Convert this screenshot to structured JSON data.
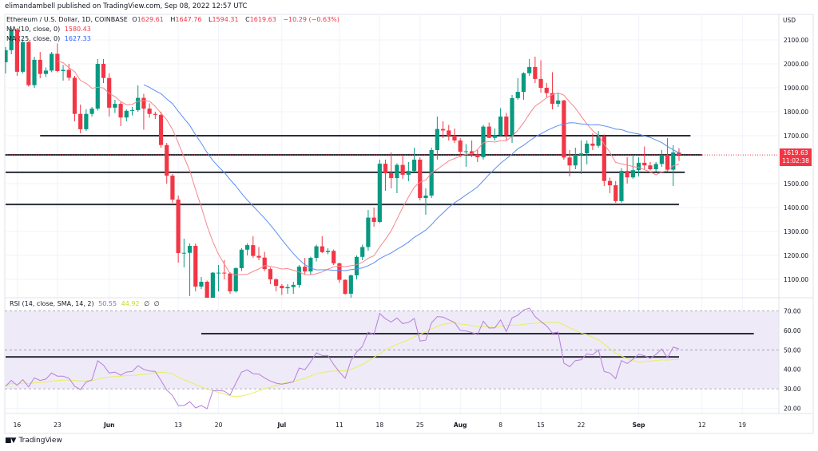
{
  "header": {
    "published": "elimandambell published on TradingView.com, Sep 08, 2022 12:57 UTC"
  },
  "legend": {
    "symbol": "Ethereum / U.S. Dollar, 1D, COINBASE",
    "o_label": "O",
    "o_value": "1629.61",
    "h_label": "H",
    "h_value": "1647.76",
    "l_label": "L",
    "l_value": "1594.31",
    "c_label": "C",
    "c_value": "1619.63",
    "change": "−10.29 (−0.63%)",
    "ma1_label": "MA (10, close, 0)",
    "ma1_value": "1580.43",
    "ma2_label": "MA (25, close, 0)",
    "ma2_value": "1627.33",
    "rsi_label": "RSI (14, close, SMA, 14, 2)",
    "rsi_value": "50.55",
    "rsi_sma_value": "44.92",
    "rsi_extra1": "∅",
    "rsi_extra2": "∅"
  },
  "price_axis": {
    "currency": "USD",
    "last_price": "1619.63",
    "countdown": "11:02:38"
  },
  "footer": {
    "brand": "TradingView",
    "logo": "17"
  },
  "colors": {
    "up": "#089981",
    "down": "#f23645",
    "ma10": "#f7868b",
    "ma25": "#5b8ef6",
    "rsi": "#b67fdc",
    "rsi_sma": "#e6f05a",
    "rsi_band": "#efeaf8",
    "drawing": "#2a2e39",
    "grid": "#f0f3fa"
  },
  "chart_data": [
    {
      "type": "candlestick",
      "title": "Ethereum / U.S. Dollar, 1D, COINBASE",
      "ylabel": "USD",
      "ylim": [
        1040,
        2160
      ],
      "grid": true,
      "y_ticks": [
        "2100.00",
        "2000.00",
        "1900.00",
        "1800.00",
        "1700.00",
        "1500.00",
        "1400.00",
        "1300.00",
        "1200.00",
        "1100.00"
      ],
      "x_ticks": [
        {
          "label": "16",
          "date": "2022-05-16"
        },
        {
          "label": "23",
          "date": "2022-05-23"
        },
        {
          "label": "Jun",
          "date": "2022-06-01"
        },
        {
          "label": "13",
          "date": "2022-06-13"
        },
        {
          "label": "20",
          "date": "2022-06-20"
        },
        {
          "label": "Jul",
          "date": "2022-07-01"
        },
        {
          "label": "11",
          "date": "2022-07-11"
        },
        {
          "label": "18",
          "date": "2022-07-18"
        },
        {
          "label": "25",
          "date": "2022-07-25"
        },
        {
          "label": "Aug",
          "date": "2022-08-01"
        },
        {
          "label": "8",
          "date": "2022-08-08"
        },
        {
          "label": "15",
          "date": "2022-08-15"
        },
        {
          "label": "22",
          "date": "2022-08-22"
        },
        {
          "label": "Sep",
          "date": "2022-09-01"
        },
        {
          "label": "12",
          "date": "2022-09-12"
        },
        {
          "label": "19",
          "date": "2022-09-19"
        }
      ],
      "candles_columns": [
        "date",
        "open",
        "high",
        "low",
        "close"
      ],
      "candles": [
        [
          "2022-05-14",
          2007,
          2070,
          1960,
          2057
        ],
        [
          "2022-05-15",
          2057,
          2150,
          2040,
          2143
        ],
        [
          "2022-05-16",
          2143,
          2150,
          1950,
          1967
        ],
        [
          "2022-05-17",
          1967,
          2100,
          1960,
          2091
        ],
        [
          "2022-05-18",
          2091,
          2095,
          1905,
          1911
        ],
        [
          "2022-05-19",
          1911,
          2030,
          1900,
          2017
        ],
        [
          "2022-05-20",
          2017,
          2050,
          1940,
          1958
        ],
        [
          "2022-05-21",
          1958,
          1985,
          1945,
          1972
        ],
        [
          "2022-05-22",
          1972,
          2050,
          1965,
          2042
        ],
        [
          "2022-05-23",
          2042,
          2085,
          1965,
          1970
        ],
        [
          "2022-05-24",
          1970,
          1995,
          1930,
          1975
        ],
        [
          "2022-05-25",
          1975,
          2000,
          1930,
          1942
        ],
        [
          "2022-05-26",
          1942,
          1950,
          1760,
          1791
        ],
        [
          "2022-05-27",
          1791,
          1830,
          1710,
          1727
        ],
        [
          "2022-05-28",
          1727,
          1810,
          1720,
          1791
        ],
        [
          "2022-05-29",
          1791,
          1820,
          1780,
          1813
        ],
        [
          "2022-05-30",
          1813,
          2020,
          1805,
          2000
        ],
        [
          "2022-05-31",
          2000,
          2020,
          1920,
          1941
        ],
        [
          "2022-06-01",
          1941,
          1960,
          1780,
          1817
        ],
        [
          "2022-06-02",
          1817,
          1850,
          1795,
          1833
        ],
        [
          "2022-06-03",
          1833,
          1840,
          1740,
          1776
        ],
        [
          "2022-06-04",
          1776,
          1810,
          1760,
          1804
        ],
        [
          "2022-06-05",
          1804,
          1820,
          1785,
          1807
        ],
        [
          "2022-06-06",
          1807,
          1910,
          1800,
          1858
        ],
        [
          "2022-06-07",
          1858,
          1875,
          1725,
          1813
        ],
        [
          "2022-06-08",
          1813,
          1835,
          1775,
          1791
        ],
        [
          "2022-06-09",
          1791,
          1800,
          1770,
          1787
        ],
        [
          "2022-06-10",
          1787,
          1800,
          1650,
          1661
        ],
        [
          "2022-06-11",
          1661,
          1670,
          1500,
          1533
        ],
        [
          "2022-06-12",
          1533,
          1540,
          1420,
          1433
        ],
        [
          "2022-06-13",
          1433,
          1450,
          1170,
          1210
        ],
        [
          "2022-06-14",
          1210,
          1270,
          1150,
          1211
        ],
        [
          "2022-06-15",
          1211,
          1250,
          1030,
          1240
        ],
        [
          "2022-06-16",
          1240,
          1250,
          1050,
          1070
        ],
        [
          "2022-06-17",
          1070,
          1110,
          1060,
          1090
        ],
        [
          "2022-06-18",
          1090,
          1095,
          880,
          1000
        ],
        [
          "2022-06-19",
          1000,
          1130,
          980,
          1128
        ],
        [
          "2022-06-20",
          1128,
          1160,
          1050,
          1128
        ],
        [
          "2022-06-21",
          1128,
          1180,
          1100,
          1125
        ],
        [
          "2022-06-22",
          1125,
          1130,
          1040,
          1050
        ],
        [
          "2022-06-23",
          1050,
          1150,
          1045,
          1147
        ],
        [
          "2022-06-24",
          1147,
          1230,
          1135,
          1224
        ],
        [
          "2022-06-25",
          1224,
          1250,
          1200,
          1243
        ],
        [
          "2022-06-26",
          1243,
          1280,
          1190,
          1198
        ],
        [
          "2022-06-27",
          1198,
          1235,
          1180,
          1191
        ],
        [
          "2022-06-28",
          1191,
          1215,
          1135,
          1143
        ],
        [
          "2022-06-29",
          1143,
          1150,
          1080,
          1100
        ],
        [
          "2022-06-30",
          1100,
          1105,
          1050,
          1073
        ],
        [
          "2022-07-01",
          1073,
          1080,
          1035,
          1063
        ],
        [
          "2022-07-02",
          1063,
          1080,
          1040,
          1068
        ],
        [
          "2022-07-03",
          1068,
          1090,
          1040,
          1077
        ],
        [
          "2022-07-04",
          1077,
          1160,
          1065,
          1153
        ],
        [
          "2022-07-05",
          1153,
          1190,
          1120,
          1133
        ],
        [
          "2022-07-06",
          1133,
          1195,
          1120,
          1190
        ],
        [
          "2022-07-07",
          1190,
          1245,
          1175,
          1238
        ],
        [
          "2022-07-08",
          1238,
          1280,
          1210,
          1214
        ],
        [
          "2022-07-09",
          1214,
          1230,
          1205,
          1219
        ],
        [
          "2022-07-10",
          1219,
          1225,
          1160,
          1167
        ],
        [
          "2022-07-11",
          1167,
          1170,
          1085,
          1098
        ],
        [
          "2022-07-12",
          1098,
          1100,
          1035,
          1040
        ],
        [
          "2022-07-13",
          1040,
          1120,
          1020,
          1117
        ],
        [
          "2022-07-14",
          1117,
          1200,
          1100,
          1194
        ],
        [
          "2022-07-15",
          1194,
          1245,
          1180,
          1235
        ],
        [
          "2022-07-16",
          1235,
          1390,
          1220,
          1358
        ],
        [
          "2022-07-17",
          1358,
          1400,
          1320,
          1340
        ],
        [
          "2022-07-18",
          1340,
          1600,
          1335,
          1583
        ],
        [
          "2022-07-19",
          1583,
          1600,
          1470,
          1543
        ],
        [
          "2022-07-20",
          1543,
          1630,
          1480,
          1523
        ],
        [
          "2022-07-21",
          1523,
          1585,
          1460,
          1578
        ],
        [
          "2022-07-22",
          1578,
          1620,
          1520,
          1537
        ],
        [
          "2022-07-23",
          1537,
          1590,
          1510,
          1553
        ],
        [
          "2022-07-24",
          1553,
          1650,
          1550,
          1600
        ],
        [
          "2022-07-25",
          1600,
          1610,
          1430,
          1440
        ],
        [
          "2022-07-26",
          1440,
          1480,
          1370,
          1450
        ],
        [
          "2022-07-27",
          1450,
          1650,
          1440,
          1640
        ],
        [
          "2022-07-28",
          1640,
          1780,
          1600,
          1728
        ],
        [
          "2022-07-29",
          1728,
          1760,
          1690,
          1722
        ],
        [
          "2022-07-30",
          1722,
          1745,
          1680,
          1700
        ],
        [
          "2022-07-31",
          1700,
          1730,
          1670,
          1680
        ],
        [
          "2022-08-01",
          1680,
          1690,
          1610,
          1633
        ],
        [
          "2022-08-02",
          1633,
          1665,
          1570,
          1635
        ],
        [
          "2022-08-03",
          1635,
          1680,
          1610,
          1622
        ],
        [
          "2022-08-04",
          1622,
          1640,
          1590,
          1610
        ],
        [
          "2022-08-05",
          1610,
          1745,
          1600,
          1738
        ],
        [
          "2022-08-06",
          1738,
          1755,
          1690,
          1691
        ],
        [
          "2022-08-07",
          1691,
          1730,
          1680,
          1702
        ],
        [
          "2022-08-08",
          1702,
          1815,
          1700,
          1780
        ],
        [
          "2022-08-09",
          1780,
          1795,
          1680,
          1702
        ],
        [
          "2022-08-10",
          1702,
          1870,
          1670,
          1857
        ],
        [
          "2022-08-11",
          1857,
          1940,
          1850,
          1883
        ],
        [
          "2022-08-12",
          1883,
          1965,
          1850,
          1961
        ],
        [
          "2022-08-13",
          1961,
          2020,
          1950,
          1987
        ],
        [
          "2022-08-14",
          1987,
          2030,
          1920,
          1937
        ],
        [
          "2022-08-15",
          1937,
          2015,
          1880,
          1900
        ],
        [
          "2022-08-16",
          1900,
          1920,
          1860,
          1878
        ],
        [
          "2022-08-17",
          1878,
          1965,
          1810,
          1833
        ],
        [
          "2022-08-18",
          1833,
          1880,
          1820,
          1847
        ],
        [
          "2022-08-19",
          1847,
          1850,
          1600,
          1609
        ],
        [
          "2022-08-20",
          1609,
          1640,
          1530,
          1576
        ],
        [
          "2022-08-21",
          1576,
          1650,
          1560,
          1620
        ],
        [
          "2022-08-22",
          1620,
          1680,
          1540,
          1626
        ],
        [
          "2022-08-23",
          1626,
          1680,
          1580,
          1667
        ],
        [
          "2022-08-24",
          1667,
          1710,
          1640,
          1658
        ],
        [
          "2022-08-25",
          1658,
          1720,
          1650,
          1697
        ],
        [
          "2022-08-26",
          1697,
          1705,
          1490,
          1511
        ],
        [
          "2022-08-27",
          1511,
          1525,
          1460,
          1493
        ],
        [
          "2022-08-28",
          1493,
          1510,
          1420,
          1427
        ],
        [
          "2022-08-29",
          1427,
          1565,
          1420,
          1553
        ],
        [
          "2022-08-30",
          1553,
          1610,
          1500,
          1526
        ],
        [
          "2022-08-31",
          1526,
          1620,
          1520,
          1556
        ],
        [
          "2022-09-01",
          1556,
          1610,
          1530,
          1587
        ],
        [
          "2022-09-02",
          1587,
          1655,
          1560,
          1576
        ],
        [
          "2022-09-03",
          1576,
          1590,
          1555,
          1560
        ],
        [
          "2022-09-04",
          1560,
          1590,
          1550,
          1582
        ],
        [
          "2022-09-05",
          1582,
          1640,
          1570,
          1619
        ],
        [
          "2022-09-06",
          1619,
          1690,
          1550,
          1558
        ],
        [
          "2022-09-07",
          1558,
          1660,
          1490,
          1630
        ],
        [
          "2022-09-08",
          1629.61,
          1647.76,
          1594.31,
          1619.63
        ]
      ],
      "moving_averages": [
        {
          "name": "MA (10, close, 0)",
          "period": 10,
          "color": "#f7868b"
        },
        {
          "name": "MA (25, close, 0)",
          "period": 25,
          "color": "#5b8ef6"
        }
      ],
      "horizontal_levels": [
        {
          "price": 1700,
          "from": "2022-05-20",
          "to": "2022-09-10"
        },
        {
          "price": 1620,
          "from": "2022-05-14",
          "to": "2022-09-12"
        },
        {
          "price": 1547,
          "from": "2022-05-14",
          "to": "2022-09-09"
        },
        {
          "price": 1413,
          "from": "2022-05-14",
          "to": "2022-09-08"
        }
      ],
      "last_price_line": 1619.63
    },
    {
      "type": "line",
      "title": "RSI (14, close, SMA, 14, 2)",
      "ylim": [
        15,
        75
      ],
      "y_ticks": [
        "70.00",
        "60.00",
        "50.00",
        "40.00",
        "30.00",
        "20.00"
      ],
      "bands": {
        "upper": 70,
        "middle": 50,
        "lower": 30
      },
      "rsi": [
        31.3,
        34.3,
        31.8,
        34.7,
        31,
        35.6,
        34.3,
        35,
        38.1,
        36.5,
        36.5,
        35.4,
        31.3,
        29.6,
        33.5,
        34.6,
        44.4,
        42.2,
        38.1,
        38.6,
        37,
        38.6,
        38.9,
        41.9,
        40,
        39.2,
        38.9,
        34.3,
        29.4,
        26.6,
        21.4,
        21.4,
        23.4,
        20.2,
        21.4,
        19.8,
        29.1,
        29.1,
        28.8,
        26.8,
        32.9,
        38.6,
        39.7,
        37.8,
        37.6,
        35.6,
        34,
        32.9,
        32.4,
        32.9,
        33.6,
        40.7,
        39.8,
        43.8,
        48.5,
        47.1,
        47.1,
        42.5,
        38.6,
        35.4,
        44.5,
        48.9,
        51.8,
        59.1,
        57.8,
        68.7,
        66,
        64.3,
        66.4,
        63.5,
        64.1,
        66.1,
        54.5,
        55,
        63.9,
        67.1,
        66.8,
        65.4,
        64.1,
        60,
        59.7,
        58.9,
        57.8,
        64.7,
        61.2,
        61.3,
        65.4,
        59.4,
        66.4,
        67.8,
        70.5,
        71.4,
        67.1,
        64.6,
        62.3,
        58.6,
        59.1,
        43.2,
        41.4,
        44.5,
        44.9,
        47.9,
        47.4,
        50,
        38.9,
        38.1,
        35.2,
        44.5,
        43,
        45.2,
        47.7,
        47,
        45.6,
        47.7,
        50.4,
        46,
        51.4,
        50.55
      ],
      "sma_period": 14,
      "horizontal_levels": [
        {
          "value": 58.3,
          "from": "2022-06-17",
          "to": "2022-09-21"
        },
        {
          "value": 46.4,
          "from": "2022-05-14",
          "to": "2022-09-08"
        }
      ]
    }
  ]
}
